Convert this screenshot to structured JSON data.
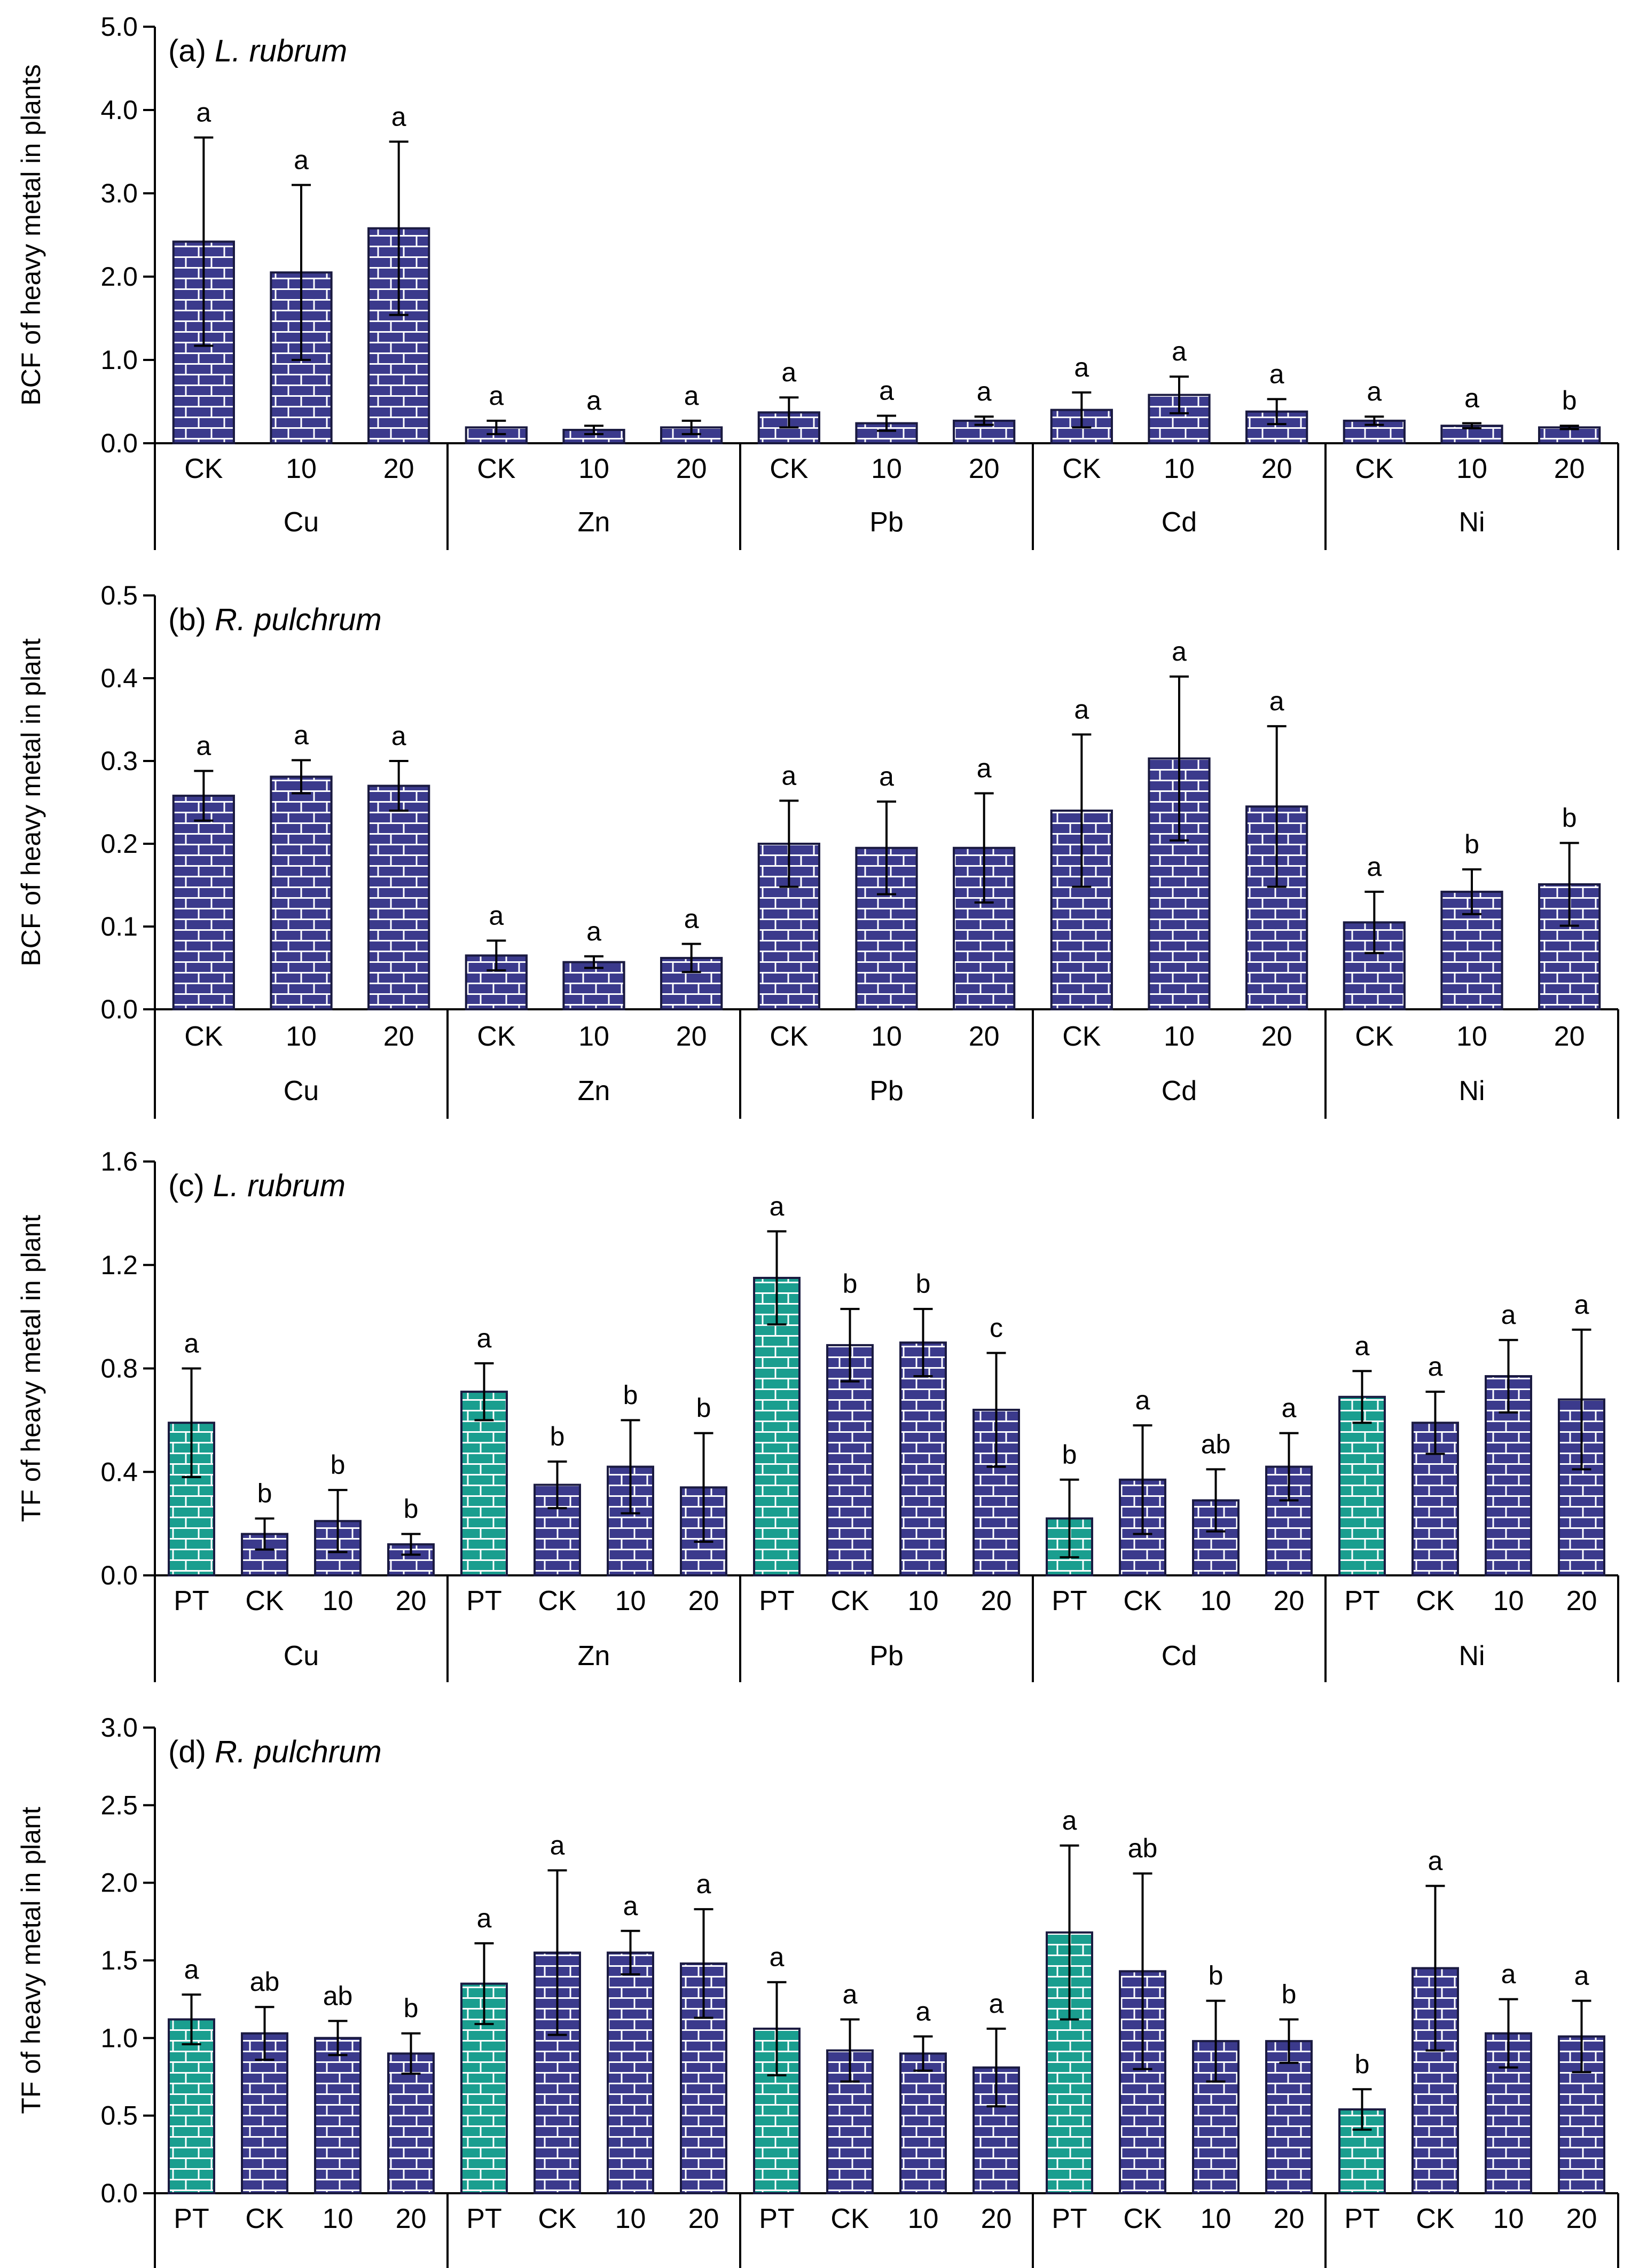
{
  "colors": {
    "treated_fill": "#3b3a8c",
    "treated_mortar": "#ffffff",
    "pt_fill": "#1a9e8f",
    "pt_mortar": "#ffffff"
  },
  "chart_data": [
    {
      "type": "bar",
      "panel_label": "(a) ",
      "species": "L. rubrum",
      "ylabel": "BCF of heavy metal in plants",
      "ylim": [
        0,
        5
      ],
      "yticks": [
        "0.0",
        "1.0",
        "2.0",
        "3.0",
        "4.0",
        "5.0"
      ],
      "groups": [
        {
          "name": "Cu",
          "bars": [
            {
              "cat": "CK",
              "value": 2.42,
              "err": 1.25,
              "letter": "a",
              "kind": "treated"
            },
            {
              "cat": "10",
              "value": 2.05,
              "err": 1.05,
              "letter": "a",
              "kind": "treated"
            },
            {
              "cat": "20",
              "value": 2.58,
              "err": 1.04,
              "letter": "a",
              "kind": "treated"
            }
          ]
        },
        {
          "name": "Zn",
          "bars": [
            {
              "cat": "CK",
              "value": 0.19,
              "err": 0.08,
              "letter": "a",
              "kind": "treated"
            },
            {
              "cat": "10",
              "value": 0.16,
              "err": 0.05,
              "letter": "a",
              "kind": "treated"
            },
            {
              "cat": "20",
              "value": 0.19,
              "err": 0.08,
              "letter": "a",
              "kind": "treated"
            }
          ]
        },
        {
          "name": "Pb",
          "bars": [
            {
              "cat": "CK",
              "value": 0.37,
              "err": 0.18,
              "letter": "a",
              "kind": "treated"
            },
            {
              "cat": "10",
              "value": 0.24,
              "err": 0.09,
              "letter": "a",
              "kind": "treated"
            },
            {
              "cat": "20",
              "value": 0.27,
              "err": 0.05,
              "letter": "a",
              "kind": "treated"
            }
          ]
        },
        {
          "name": "Cd",
          "bars": [
            {
              "cat": "CK",
              "value": 0.4,
              "err": 0.21,
              "letter": "a",
              "kind": "treated"
            },
            {
              "cat": "10",
              "value": 0.58,
              "err": 0.22,
              "letter": "a",
              "kind": "treated"
            },
            {
              "cat": "20",
              "value": 0.38,
              "err": 0.15,
              "letter": "a",
              "kind": "treated"
            }
          ]
        },
        {
          "name": "Ni",
          "bars": [
            {
              "cat": "CK",
              "value": 0.27,
              "err": 0.05,
              "letter": "a",
              "kind": "treated"
            },
            {
              "cat": "10",
              "value": 0.21,
              "err": 0.03,
              "letter": "a",
              "kind": "treated"
            },
            {
              "cat": "20",
              "value": 0.19,
              "err": 0.02,
              "letter": "b",
              "kind": "treated"
            }
          ]
        }
      ]
    },
    {
      "type": "bar",
      "panel_label": "(b) ",
      "species": "R. pulchrum",
      "ylabel": "BCF of heavy metal in plant",
      "ylim": [
        0,
        0.5
      ],
      "yticks": [
        "0.0",
        "0.1",
        "0.2",
        "0.3",
        "0.4",
        "0.5"
      ],
      "groups": [
        {
          "name": "Cu",
          "bars": [
            {
              "cat": "CK",
              "value": 0.258,
              "err": 0.03,
              "letter": "a",
              "kind": "treated"
            },
            {
              "cat": "10",
              "value": 0.281,
              "err": 0.02,
              "letter": "a",
              "kind": "treated"
            },
            {
              "cat": "20",
              "value": 0.27,
              "err": 0.03,
              "letter": "a",
              "kind": "treated"
            }
          ]
        },
        {
          "name": "Zn",
          "bars": [
            {
              "cat": "CK",
              "value": 0.065,
              "err": 0.018,
              "letter": "a",
              "kind": "treated"
            },
            {
              "cat": "10",
              "value": 0.057,
              "err": 0.007,
              "letter": "a",
              "kind": "treated"
            },
            {
              "cat": "20",
              "value": 0.062,
              "err": 0.017,
              "letter": "a",
              "kind": "treated"
            }
          ]
        },
        {
          "name": "Pb",
          "bars": [
            {
              "cat": "CK",
              "value": 0.2,
              "err": 0.052,
              "letter": "a",
              "kind": "treated"
            },
            {
              "cat": "10",
              "value": 0.195,
              "err": 0.056,
              "letter": "a",
              "kind": "treated"
            },
            {
              "cat": "20",
              "value": 0.195,
              "err": 0.066,
              "letter": "a",
              "kind": "treated"
            }
          ]
        },
        {
          "name": "Cd",
          "bars": [
            {
              "cat": "CK",
              "value": 0.24,
              "err": 0.092,
              "letter": "a",
              "kind": "treated"
            },
            {
              "cat": "10",
              "value": 0.303,
              "err": 0.099,
              "letter": "a",
              "kind": "treated"
            },
            {
              "cat": "20",
              "value": 0.245,
              "err": 0.097,
              "letter": "a",
              "kind": "treated"
            }
          ]
        },
        {
          "name": "Ni",
          "bars": [
            {
              "cat": "CK",
              "value": 0.105,
              "err": 0.037,
              "letter": "a",
              "kind": "treated"
            },
            {
              "cat": "10",
              "value": 0.142,
              "err": 0.027,
              "letter": "b",
              "kind": "treated"
            },
            {
              "cat": "20",
              "value": 0.151,
              "err": 0.05,
              "letter": "b",
              "kind": "treated"
            }
          ]
        }
      ]
    },
    {
      "type": "bar",
      "panel_label": "(c) ",
      "species": "L. rubrum",
      "ylabel": "TF of heavy metal in plant",
      "ylim": [
        0,
        1.6
      ],
      "yticks": [
        "0.0",
        "0.4",
        "0.8",
        "1.2",
        "1.6"
      ],
      "groups": [
        {
          "name": "Cu",
          "bars": [
            {
              "cat": "PT",
              "value": 0.59,
              "err": 0.21,
              "letter": "a",
              "kind": "pt"
            },
            {
              "cat": "CK",
              "value": 0.16,
              "err": 0.06,
              "letter": "b",
              "kind": "treated"
            },
            {
              "cat": "10",
              "value": 0.21,
              "err": 0.12,
              "letter": "b",
              "kind": "treated"
            },
            {
              "cat": "20",
              "value": 0.12,
              "err": 0.04,
              "letter": "b",
              "kind": "treated"
            }
          ]
        },
        {
          "name": "Zn",
          "bars": [
            {
              "cat": "PT",
              "value": 0.71,
              "err": 0.11,
              "letter": "a",
              "kind": "pt"
            },
            {
              "cat": "CK",
              "value": 0.35,
              "err": 0.09,
              "letter": "b",
              "kind": "treated"
            },
            {
              "cat": "10",
              "value": 0.42,
              "err": 0.18,
              "letter": "b",
              "kind": "treated"
            },
            {
              "cat": "20",
              "value": 0.34,
              "err": 0.21,
              "letter": "b",
              "kind": "treated"
            }
          ]
        },
        {
          "name": "Pb",
          "bars": [
            {
              "cat": "PT",
              "value": 1.15,
              "err": 0.18,
              "letter": "a",
              "kind": "pt"
            },
            {
              "cat": "CK",
              "value": 0.89,
              "err": 0.14,
              "letter": "b",
              "kind": "treated"
            },
            {
              "cat": "10",
              "value": 0.9,
              "err": 0.13,
              "letter": "b",
              "kind": "treated"
            },
            {
              "cat": "20",
              "value": 0.64,
              "err": 0.22,
              "letter": "c",
              "kind": "treated"
            }
          ]
        },
        {
          "name": "Cd",
          "bars": [
            {
              "cat": "PT",
              "value": 0.22,
              "err": 0.15,
              "letter": "b",
              "kind": "pt"
            },
            {
              "cat": "CK",
              "value": 0.37,
              "err": 0.21,
              "letter": "a",
              "kind": "treated"
            },
            {
              "cat": "10",
              "value": 0.29,
              "err": 0.12,
              "letter": "ab",
              "kind": "treated"
            },
            {
              "cat": "20",
              "value": 0.42,
              "err": 0.13,
              "letter": "a",
              "kind": "treated"
            }
          ]
        },
        {
          "name": "Ni",
          "bars": [
            {
              "cat": "PT",
              "value": 0.69,
              "err": 0.1,
              "letter": "a",
              "kind": "pt"
            },
            {
              "cat": "CK",
              "value": 0.59,
              "err": 0.12,
              "letter": "a",
              "kind": "treated"
            },
            {
              "cat": "10",
              "value": 0.77,
              "err": 0.14,
              "letter": "a",
              "kind": "treated"
            },
            {
              "cat": "20",
              "value": 0.68,
              "err": 0.27,
              "letter": "a",
              "kind": "treated"
            }
          ]
        }
      ]
    },
    {
      "type": "bar",
      "panel_label": "(d) ",
      "species": "R. pulchrum",
      "ylabel": "TF of heavy metal in plant",
      "ylim": [
        0,
        3
      ],
      "yticks": [
        "0.0",
        "0.5",
        "1.0",
        "1.5",
        "2.0",
        "2.5",
        "3.0"
      ],
      "groups": [
        {
          "name": "",
          "bars": [
            {
              "cat": "PT",
              "value": 1.12,
              "err": 0.16,
              "letter": "a",
              "kind": "pt"
            },
            {
              "cat": "CK",
              "value": 1.03,
              "err": 0.17,
              "letter": "ab",
              "kind": "treated"
            },
            {
              "cat": "10",
              "value": 1.0,
              "err": 0.11,
              "letter": "ab",
              "kind": "treated"
            },
            {
              "cat": "20",
              "value": 0.9,
              "err": 0.13,
              "letter": "b",
              "kind": "treated"
            }
          ]
        },
        {
          "name": "",
          "bars": [
            {
              "cat": "PT",
              "value": 1.35,
              "err": 0.26,
              "letter": "a",
              "kind": "pt"
            },
            {
              "cat": "CK",
              "value": 1.55,
              "err": 0.53,
              "letter": "a",
              "kind": "treated"
            },
            {
              "cat": "10",
              "value": 1.55,
              "err": 0.14,
              "letter": "a",
              "kind": "treated"
            },
            {
              "cat": "20",
              "value": 1.48,
              "err": 0.35,
              "letter": "a",
              "kind": "treated"
            }
          ]
        },
        {
          "name": "",
          "bars": [
            {
              "cat": "PT",
              "value": 1.06,
              "err": 0.3,
              "letter": "a",
              "kind": "pt"
            },
            {
              "cat": "CK",
              "value": 0.92,
              "err": 0.2,
              "letter": "a",
              "kind": "treated"
            },
            {
              "cat": "10",
              "value": 0.9,
              "err": 0.11,
              "letter": "a",
              "kind": "treated"
            },
            {
              "cat": "20",
              "value": 0.81,
              "err": 0.25,
              "letter": "a",
              "kind": "treated"
            }
          ]
        },
        {
          "name": "",
          "bars": [
            {
              "cat": "PT",
              "value": 1.68,
              "err": 0.56,
              "letter": "a",
              "kind": "pt"
            },
            {
              "cat": "CK",
              "value": 1.43,
              "err": 0.63,
              "letter": "ab",
              "kind": "treated"
            },
            {
              "cat": "10",
              "value": 0.98,
              "err": 0.26,
              "letter": "b",
              "kind": "treated"
            },
            {
              "cat": "20",
              "value": 0.98,
              "err": 0.14,
              "letter": "b",
              "kind": "treated"
            }
          ]
        },
        {
          "name": "",
          "bars": [
            {
              "cat": "PT",
              "value": 0.54,
              "err": 0.13,
              "letter": "b",
              "kind": "pt"
            },
            {
              "cat": "CK",
              "value": 1.45,
              "err": 0.53,
              "letter": "a",
              "kind": "treated"
            },
            {
              "cat": "10",
              "value": 1.03,
              "err": 0.22,
              "letter": "a",
              "kind": "treated"
            },
            {
              "cat": "20",
              "value": 1.01,
              "err": 0.23,
              "letter": "a",
              "kind": "treated"
            }
          ]
        }
      ]
    }
  ]
}
